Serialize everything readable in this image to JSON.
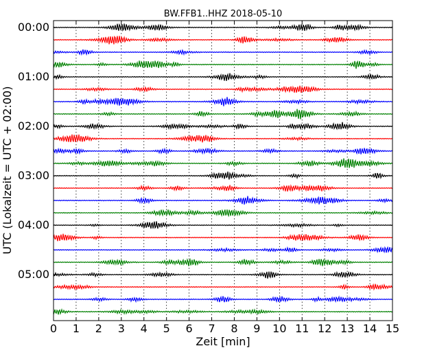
{
  "chart_data": {
    "type": "line",
    "title": "BW.FFB1..HHZ 2018-05-10",
    "xlabel": "Zeit  [min]",
    "ylabel": "UTC (Lokalzeit = UTC + 02:00)",
    "xlim": [
      0,
      15
    ],
    "x_ticks": [
      "0",
      "1",
      "2",
      "3",
      "4",
      "5",
      "6",
      "7",
      "8",
      "9",
      "10",
      "11",
      "12",
      "13",
      "14",
      "15"
    ],
    "y_tick_labels": [
      "00:00",
      "01:00",
      "02:00",
      "03:00",
      "04:00",
      "05:00"
    ],
    "vertical_grid": "dotted",
    "trace_count": 24,
    "minutes_per_trace": 15,
    "trace_colors": [
      "#000000",
      "#ff0000",
      "#0000ff",
      "#008000"
    ],
    "series_note_unlabeled": true
  }
}
